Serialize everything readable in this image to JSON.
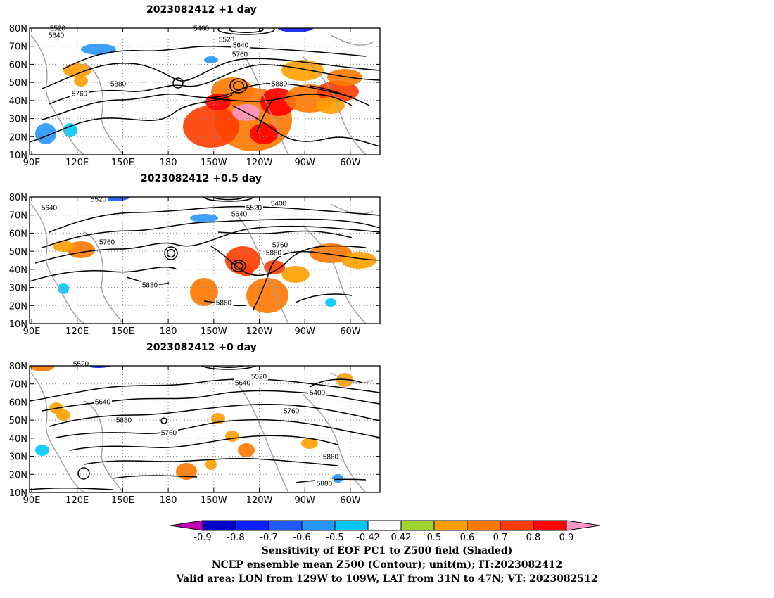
{
  "panels": [
    {
      "title": "2023082412  +1 day",
      "contours": [
        "5400",
        "5520",
        "5520",
        "5640",
        "5640",
        "5760",
        "5760",
        "5880",
        "5880"
      ]
    },
    {
      "title": "2023082412  +0.5 day",
      "contours": [
        "5520",
        "5400",
        "5520",
        "5640",
        "5640",
        "5760",
        "5760",
        "5880",
        "5880",
        "5880"
      ]
    },
    {
      "title": "2023082412  +0 day",
      "contours": [
        "5520",
        "5520",
        "5640",
        "5400",
        "5640",
        "5760",
        "5880",
        "5760",
        "5880",
        "5880"
      ]
    }
  ],
  "axes": {
    "lat_labels": [
      "80N",
      "70N",
      "60N",
      "50N",
      "40N",
      "30N",
      "20N",
      "10N"
    ],
    "lon_labels": [
      "90E",
      "120E",
      "150E",
      "180",
      "150W",
      "120W",
      "90W",
      "60W"
    ]
  },
  "colorbar": {
    "labels": [
      "-0.9",
      "-0.8",
      "-0.7",
      "-0.6",
      "-0.5",
      "-0.42",
      "0.42",
      "0.5",
      "0.6",
      "0.7",
      "0.8",
      "0.9"
    ],
    "colors": [
      "#c000b0",
      "#0000c8",
      "#0a1eff",
      "#1e5aff",
      "#2896ff",
      "#00c8ff",
      "#ffffff",
      "#a0d232",
      "#ffa000",
      "#ff7800",
      "#ff3c00",
      "#ff0000",
      "#ff96c8"
    ]
  },
  "caption": {
    "line1": "Sensitivity of EOF PC1 to Z500 field (Shaded)",
    "line2": "NCEP ensemble mean Z500 (Contour); unit(m); IT:2023082412",
    "line3": "Valid area: LON from 129W to 109W, LAT from 31N to 47N; VT: 2023082512"
  }
}
